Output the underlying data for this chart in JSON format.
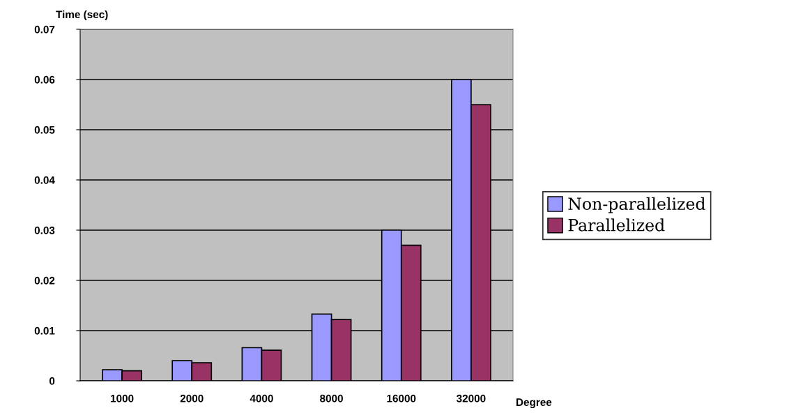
{
  "chart_data": {
    "type": "bar",
    "ylabel": "Time (sec)",
    "xlabel": "Degree",
    "categories": [
      "1000",
      "2000",
      "4000",
      "8000",
      "16000",
      "32000"
    ],
    "series": [
      {
        "name": "Non-parallelized",
        "color": "#9999ff",
        "values": [
          0.0022,
          0.004,
          0.0066,
          0.0133,
          0.03,
          0.06
        ]
      },
      {
        "name": "Parallelized",
        "color": "#993366",
        "values": [
          0.002,
          0.0036,
          0.0061,
          0.0122,
          0.027,
          0.055
        ]
      }
    ],
    "ylim": [
      0,
      0.07
    ],
    "yticks": [
      {
        "value": 0,
        "label": "0"
      },
      0.01,
      0.02,
      0.03,
      0.04,
      0.05,
      0.06,
      0.07
    ],
    "grid": "y",
    "legend": "right"
  }
}
